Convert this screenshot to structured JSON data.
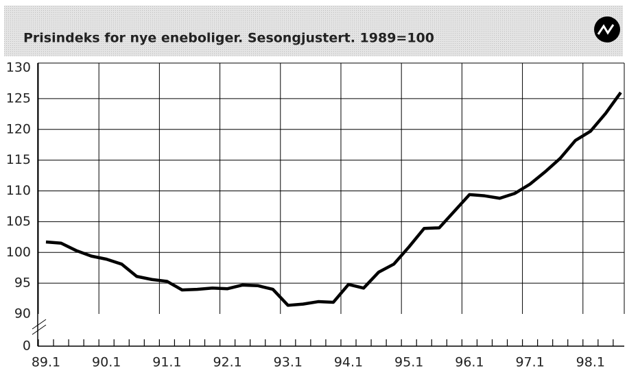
{
  "chart_data": {
    "type": "line",
    "title": "Prisindeks for nye eneboliger. Sesongjustert. 1989=100",
    "categories": [
      "89.1",
      null,
      null,
      null,
      "90.1",
      null,
      null,
      null,
      "91.1",
      null,
      null,
      null,
      "92.1",
      null,
      null,
      null,
      "93.1",
      null,
      null,
      null,
      "94.1",
      null,
      null,
      null,
      "95.1",
      null,
      null,
      null,
      "96.1",
      null,
      null,
      null,
      "97.1",
      null,
      null,
      null,
      "98.1",
      null,
      null
    ],
    "series": [
      {
        "color": "#000000",
        "values": [
          101.7,
          101.5,
          100.3,
          99.4,
          98.9,
          98.1,
          96.1,
          95.6,
          95.3,
          93.9,
          94.0,
          94.2,
          94.1,
          94.7,
          94.6,
          94.0,
          91.4,
          91.6,
          92.0,
          91.9,
          94.8,
          94.2,
          96.8,
          98.1,
          100.9,
          103.9,
          104.0,
          106.7,
          109.4,
          109.2,
          108.8,
          109.6,
          111.1,
          113.1,
          115.3,
          118.2,
          119.7,
          122.6,
          126.0
        ]
      }
    ],
    "ylim": [
      0,
      130
    ],
    "axis_break": [
      0,
      90
    ],
    "yticks": [
      0,
      90,
      95,
      100,
      105,
      110,
      115,
      120,
      125,
      130
    ],
    "grid": true
  }
}
